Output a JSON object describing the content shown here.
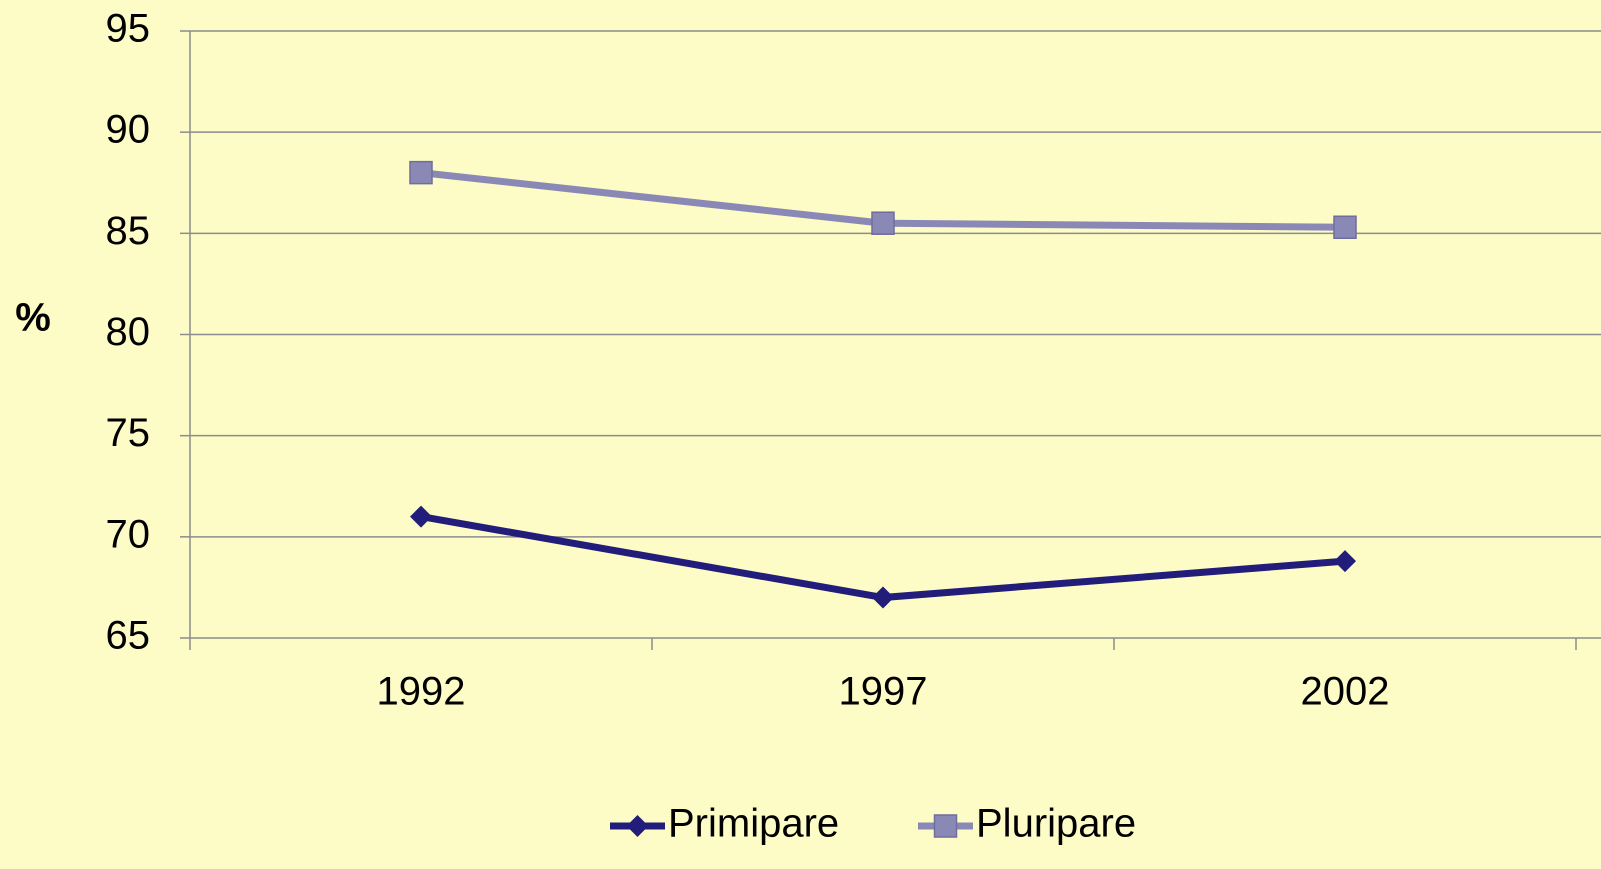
{
  "chart_data": {
    "type": "line",
    "y_label": "%",
    "categories": [
      "1992",
      "1997",
      "2002"
    ],
    "series": [
      {
        "name": "Primipare",
        "color": "#221c7a",
        "marker": "diamond",
        "values": [
          71,
          67,
          68.8
        ]
      },
      {
        "name": "Pluripare",
        "color": "#8a89b6",
        "marker": "square",
        "values": [
          88,
          85.5,
          85.3
        ]
      }
    ],
    "ylim": [
      65,
      95
    ],
    "yticks": [
      65,
      70,
      75,
      80,
      85,
      90,
      95
    ],
    "grid": true,
    "legend": "bottom"
  }
}
